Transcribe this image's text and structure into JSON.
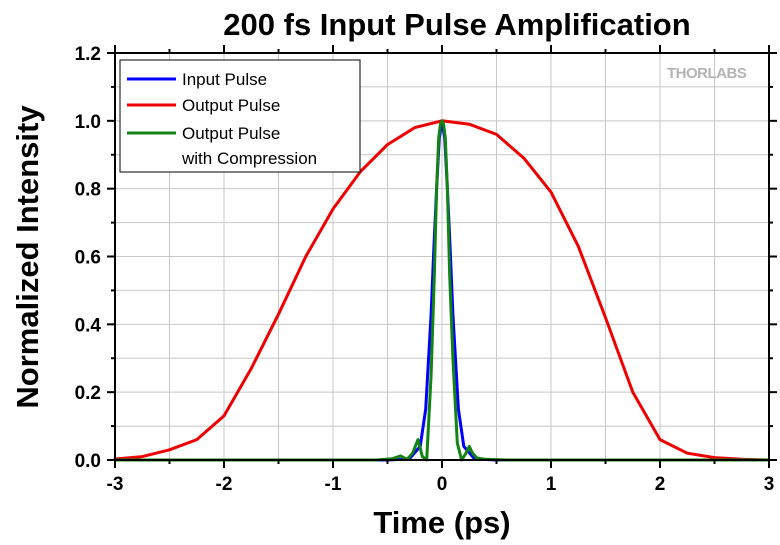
{
  "chart_data": {
    "type": "line",
    "title": "200 fs Input Pulse Amplification",
    "xlabel": "Time (ps)",
    "ylabel": "Normalized Intensity",
    "xlim": [
      -3,
      3
    ],
    "ylim": [
      0,
      1.2
    ],
    "x_ticks": [
      "-3",
      "-2",
      "-1",
      "0",
      "1",
      "2",
      "3"
    ],
    "y_ticks": [
      "0.0",
      "0.2",
      "0.4",
      "0.6",
      "0.8",
      "1.0",
      "1.2"
    ],
    "grid": true,
    "legend_position": "top-left",
    "legend": [
      "Input Pulse",
      "Output Pulse",
      "Output Pulse",
      "with Compression"
    ],
    "watermark": "THORLABS",
    "series": [
      {
        "name": "Input Pulse",
        "color": "#0000ff",
        "x": [
          -3.0,
          -0.5,
          -0.3,
          -0.2,
          -0.15,
          -0.1,
          -0.075,
          -0.05,
          -0.025,
          0.0,
          0.025,
          0.05,
          0.075,
          0.1,
          0.15,
          0.2,
          0.3,
          0.5,
          3.0
        ],
        "y": [
          0.0,
          0.0,
          0.003,
          0.04,
          0.15,
          0.43,
          0.62,
          0.8,
          0.95,
          1.0,
          0.95,
          0.8,
          0.62,
          0.43,
          0.15,
          0.04,
          0.003,
          0.0,
          0.0
        ]
      },
      {
        "name": "Output Pulse",
        "color": "#ee0000",
        "x": [
          -3.0,
          -2.75,
          -2.5,
          -2.25,
          -2.0,
          -1.75,
          -1.5,
          -1.25,
          -1.0,
          -0.75,
          -0.5,
          -0.25,
          0.0,
          0.25,
          0.5,
          0.75,
          1.0,
          1.25,
          1.5,
          1.75,
          2.0,
          2.25,
          2.5,
          2.75,
          3.0
        ],
        "y": [
          0.003,
          0.01,
          0.03,
          0.06,
          0.13,
          0.27,
          0.43,
          0.6,
          0.74,
          0.85,
          0.93,
          0.98,
          1.0,
          0.99,
          0.96,
          0.89,
          0.79,
          0.63,
          0.42,
          0.2,
          0.06,
          0.02,
          0.007,
          0.002,
          0.0
        ]
      },
      {
        "name": "Output Pulse with Compression",
        "color": "#138413",
        "x": [
          -3.0,
          -0.6,
          -0.45,
          -0.38,
          -0.32,
          -0.27,
          -0.22,
          -0.18,
          -0.14,
          -0.1,
          -0.07,
          -0.05,
          -0.03,
          -0.015,
          0.0,
          0.015,
          0.03,
          0.05,
          0.07,
          0.1,
          0.14,
          0.18,
          0.22,
          0.25,
          0.28,
          0.32,
          0.4,
          0.6,
          3.0
        ],
        "y": [
          0.0,
          0.0,
          0.004,
          0.012,
          0.002,
          0.02,
          0.06,
          0.01,
          0.0,
          0.25,
          0.55,
          0.8,
          0.95,
          0.99,
          1.0,
          0.99,
          0.95,
          0.8,
          0.55,
          0.3,
          0.05,
          0.0,
          0.02,
          0.04,
          0.02,
          0.006,
          0.002,
          0.0,
          0.0
        ]
      }
    ]
  }
}
